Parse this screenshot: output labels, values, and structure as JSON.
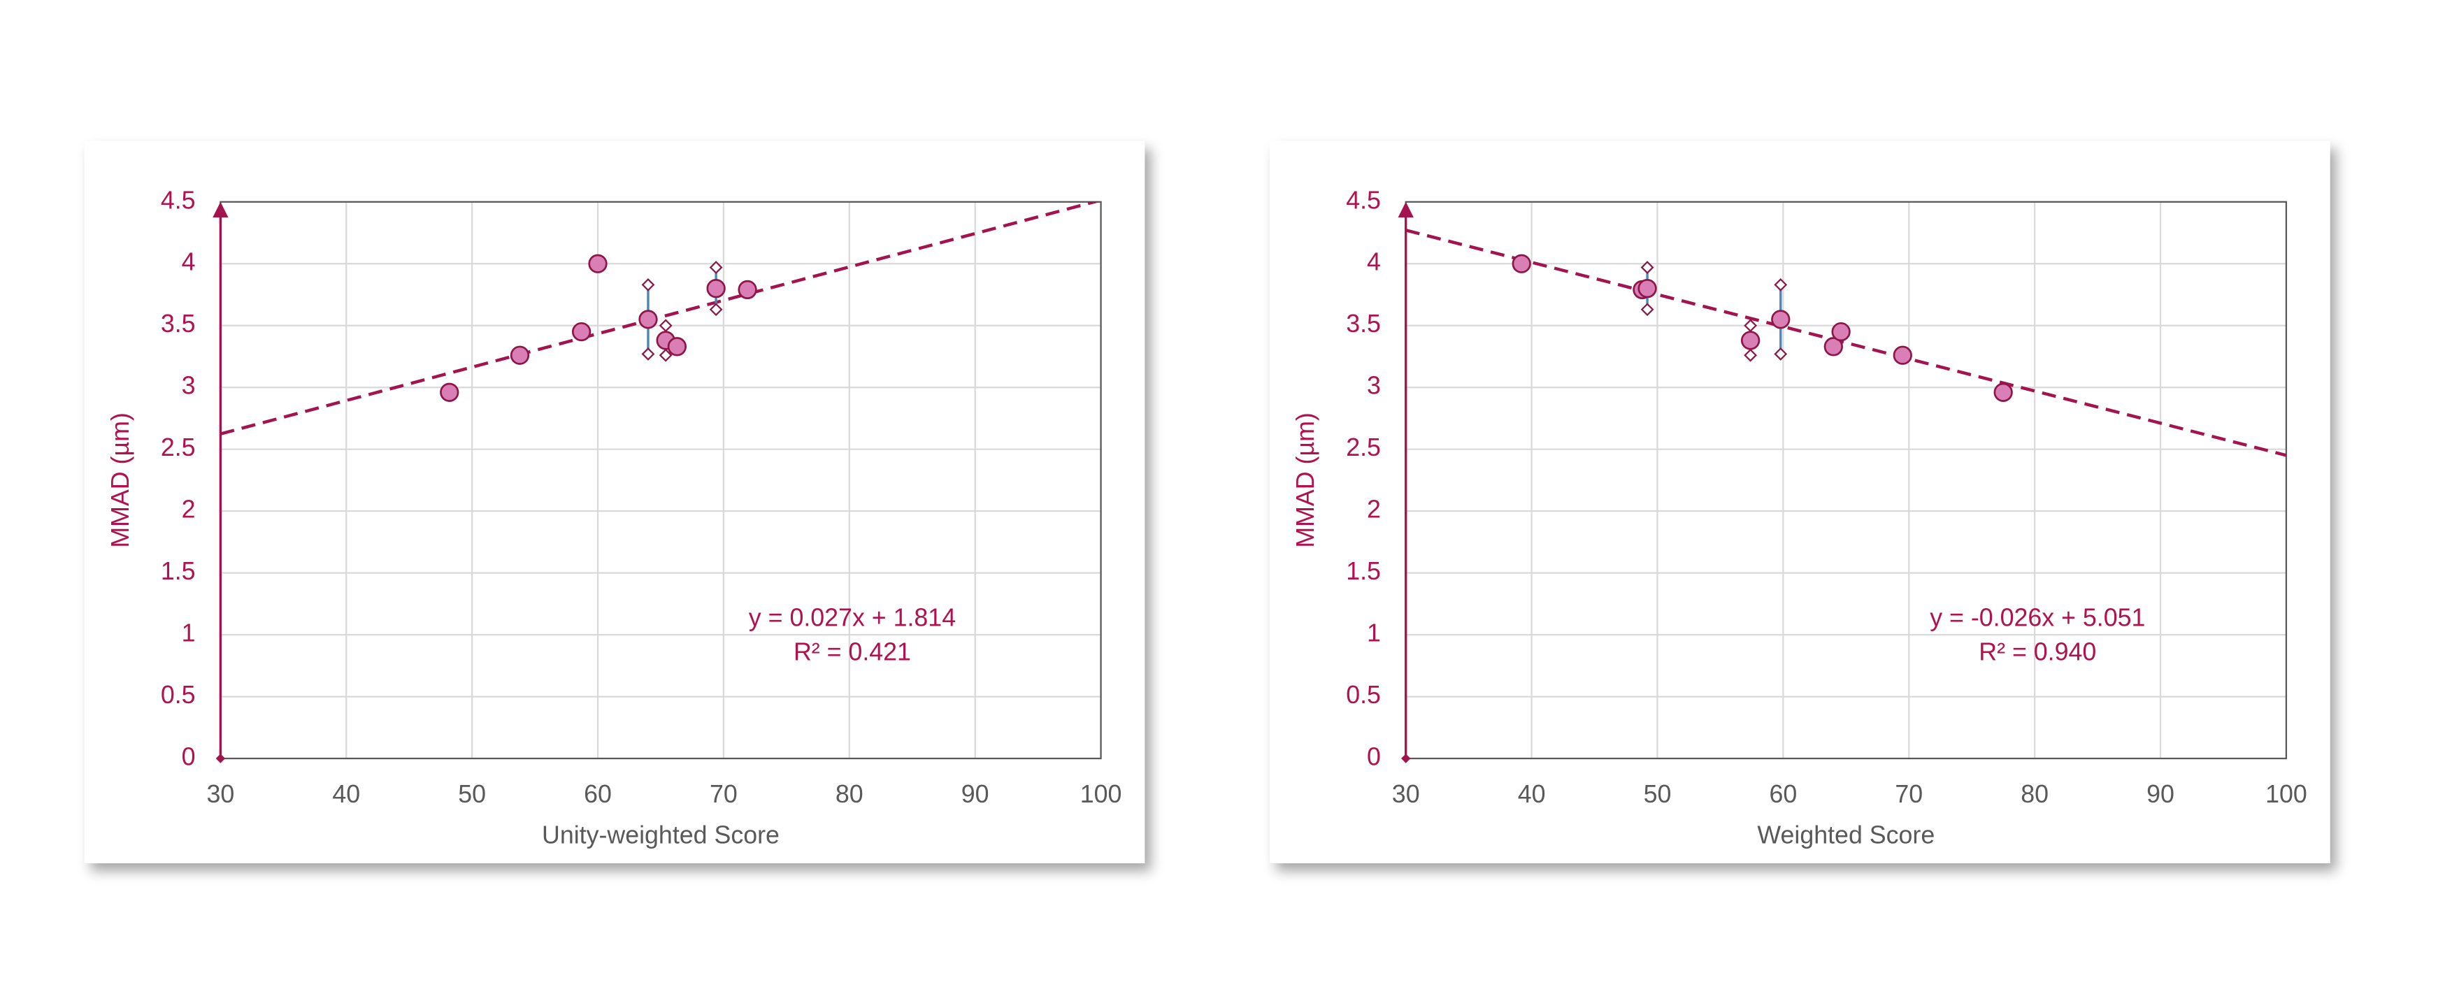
{
  "chart_data": [
    {
      "type": "scatter",
      "xlabel": "Unity-weighted Score",
      "ylabel": "MMAD (µm)",
      "x": [
        48.2,
        53.8,
        58.7,
        60.0,
        64.0,
        65.4,
        66.3,
        69.4,
        71.9
      ],
      "values": [
        2.96,
        3.26,
        3.45,
        4.0,
        3.55,
        3.38,
        3.33,
        3.8,
        3.79
      ],
      "errors": [
        null,
        null,
        null,
        null,
        0.28,
        0.12,
        null,
        0.17,
        null
      ],
      "color": "#d97fb6",
      "edge_color": "#8c1747",
      "error_color": "#4a86b8",
      "trendline": {
        "slope": 0.027,
        "intercept": 1.814,
        "equation": "y = 0.027x + 1.814",
        "r_squared": "R² = 0.421",
        "color": "#a3144f"
      },
      "xlim": [
        30,
        100
      ],
      "xticks": [
        30,
        40,
        50,
        60,
        70,
        80,
        90,
        100
      ],
      "ylim": [
        0,
        4.5
      ],
      "yticks": [
        0,
        0.5,
        1,
        1.5,
        2,
        2.5,
        3,
        3.5,
        4,
        4.5
      ],
      "grid": true
    },
    {
      "type": "scatter",
      "xlabel": "Weighted Score",
      "ylabel": "MMAD (µm)",
      "x": [
        39.2,
        48.8,
        49.2,
        57.4,
        59.8,
        64.0,
        64.6,
        69.5,
        77.5
      ],
      "values": [
        4.0,
        3.79,
        3.8,
        3.38,
        3.55,
        3.33,
        3.45,
        3.26,
        2.96
      ],
      "errors": [
        null,
        null,
        0.17,
        0.12,
        0.28,
        null,
        null,
        null,
        null
      ],
      "color": "#d97fb6",
      "edge_color": "#8c1747",
      "error_color": "#4a86b8",
      "trendline": {
        "slope": -0.026,
        "intercept": 5.051,
        "equation": "y = -0.026x + 5.051",
        "r_squared": "R² = 0.940",
        "color": "#a3144f"
      },
      "xlim": [
        30,
        100
      ],
      "xticks": [
        30,
        40,
        50,
        60,
        70,
        80,
        90,
        100
      ],
      "ylim": [
        0,
        4.5
      ],
      "yticks": [
        0,
        0.5,
        1,
        1.5,
        2,
        2.5,
        3,
        3.5,
        4,
        4.5
      ],
      "grid": true
    }
  ]
}
